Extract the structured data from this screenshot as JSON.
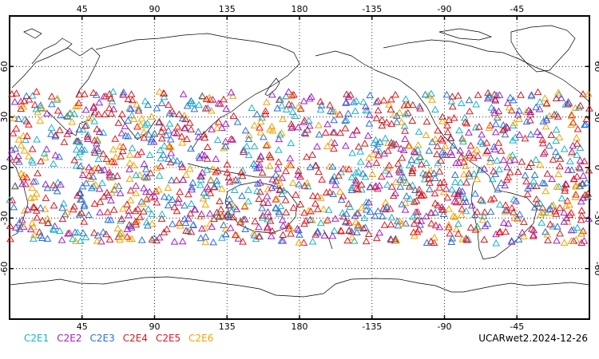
{
  "map": {
    "top_lon_ticks": [
      "45",
      "90",
      "135",
      "180",
      "-135",
      "-90",
      "-45"
    ],
    "bottom_lon_ticks": [
      "45",
      "90",
      "135",
      "180",
      "-135",
      "-90",
      "-45"
    ],
    "left_lat_ticks": [
      "60",
      "30",
      "0",
      "-30",
      "-60"
    ],
    "right_lat_ticks": [
      "60",
      "30",
      "0",
      "-30",
      "-60"
    ],
    "lon_range": [
      0,
      360
    ],
    "lat_range": [
      -90,
      90
    ],
    "grid": "dotted",
    "occultation_lat_band": [
      -45,
      45
    ]
  },
  "legend": [
    {
      "label": "C2E1",
      "color": "#18b4c8"
    },
    {
      "label": "C2E2",
      "color": "#a020c0"
    },
    {
      "label": "C2E3",
      "color": "#2a6fd8"
    },
    {
      "label": "C2E4",
      "color": "#c81e1e"
    },
    {
      "label": "C2E5",
      "color": "#e8141e"
    },
    {
      "label": "C2E6",
      "color": "#f5a300"
    }
  ],
  "footer": {
    "label": "UCARwet2.2024-12-26"
  }
}
